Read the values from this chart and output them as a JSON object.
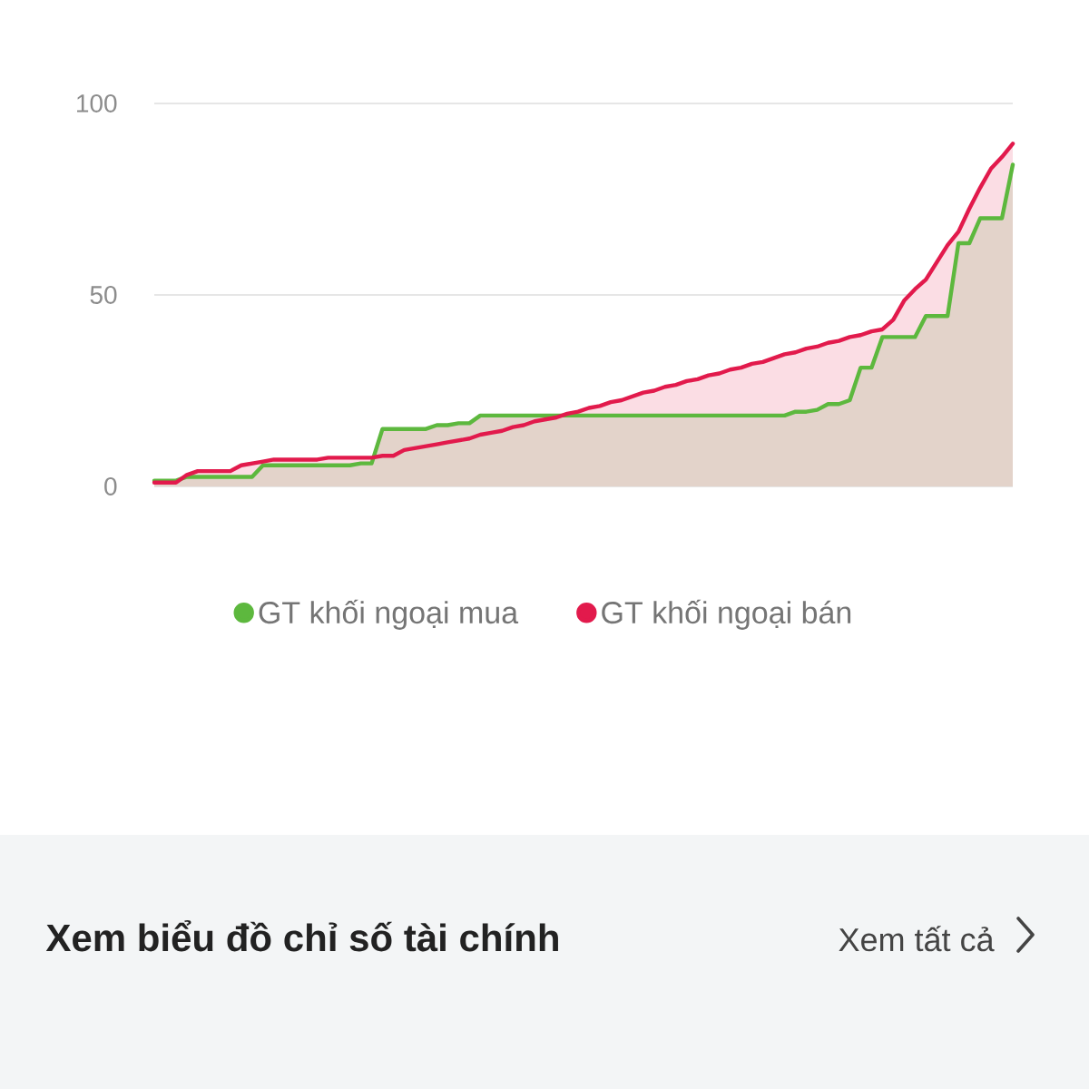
{
  "chart_data": {
    "type": "area",
    "categories": [
      null,
      null,
      null,
      null,
      null,
      null,
      null,
      null,
      null,
      null,
      null,
      null,
      null,
      null,
      null,
      null,
      null,
      null,
      null,
      null,
      null,
      null,
      null,
      null,
      null,
      null,
      null,
      null,
      null,
      null,
      null,
      null,
      null,
      null,
      null,
      null,
      null,
      null,
      null,
      null,
      null,
      null,
      null,
      null,
      null,
      null,
      null,
      null,
      null,
      null,
      null,
      null,
      null,
      null,
      null,
      null,
      null,
      null,
      null,
      null,
      null,
      null,
      null,
      null,
      null,
      null,
      null,
      null,
      null,
      null,
      null,
      null,
      null,
      null,
      null,
      null,
      null,
      null,
      null,
      null
    ],
    "series": [
      {
        "name": "GT khối ngoại mua",
        "color": "#5db83e",
        "values": [
          1.5,
          1.5,
          1.5,
          2.5,
          2.5,
          2.5,
          2.5,
          2.5,
          2.5,
          2.5,
          5.5,
          5.5,
          5.5,
          5.5,
          5.5,
          5.5,
          5.5,
          5.5,
          5.5,
          6,
          6,
          15,
          15,
          15,
          15,
          15,
          16,
          16,
          16.5,
          16.5,
          18.5,
          18.5,
          18.5,
          18.5,
          18.5,
          18.5,
          18.5,
          18.5,
          18.5,
          18.5,
          18.5,
          18.5,
          18.5,
          18.5,
          18.5,
          18.5,
          18.5,
          18.5,
          18.5,
          18.5,
          18.5,
          18.5,
          18.5,
          18.5,
          18.5,
          18.5,
          18.5,
          18.5,
          18.5,
          19.5,
          19.5,
          20,
          21.5,
          21.5,
          22.5,
          31,
          31,
          39,
          39,
          39,
          39,
          44.5,
          44.5,
          44.5,
          63.5,
          63.5,
          70,
          70,
          70,
          84
        ]
      },
      {
        "name": "GT khối ngoại bán",
        "color": "#e21a4c",
        "values": [
          1,
          1,
          1,
          3,
          4,
          4,
          4,
          4,
          5.5,
          6,
          6.5,
          7,
          7,
          7,
          7,
          7,
          7.5,
          7.5,
          7.5,
          7.5,
          7.5,
          8,
          8,
          9.5,
          10,
          10.5,
          11,
          11.5,
          12,
          12.5,
          13.5,
          14,
          14.5,
          15.5,
          16,
          17,
          17.5,
          18,
          19,
          19.5,
          20.5,
          21,
          22,
          22.5,
          23.5,
          24.5,
          25,
          26,
          26.5,
          27.5,
          28,
          29,
          29.5,
          30.5,
          31,
          32,
          32.5,
          33.5,
          34.5,
          35,
          36,
          36.5,
          37.5,
          38,
          39,
          39.5,
          40.5,
          41,
          43.5,
          48.5,
          51.5,
          54,
          58.5,
          63,
          66.5,
          72.5,
          78,
          83,
          86,
          89.5
        ]
      }
    ],
    "ylim": [
      0,
      100
    ],
    "yticks": [
      0,
      50,
      100
    ],
    "grid": "y",
    "legend": "bottom",
    "tick_labels": "y",
    "annotations": [
      "Xem biểu đồ chỉ số tài chính",
      "Xem tất cả"
    ]
  }
}
